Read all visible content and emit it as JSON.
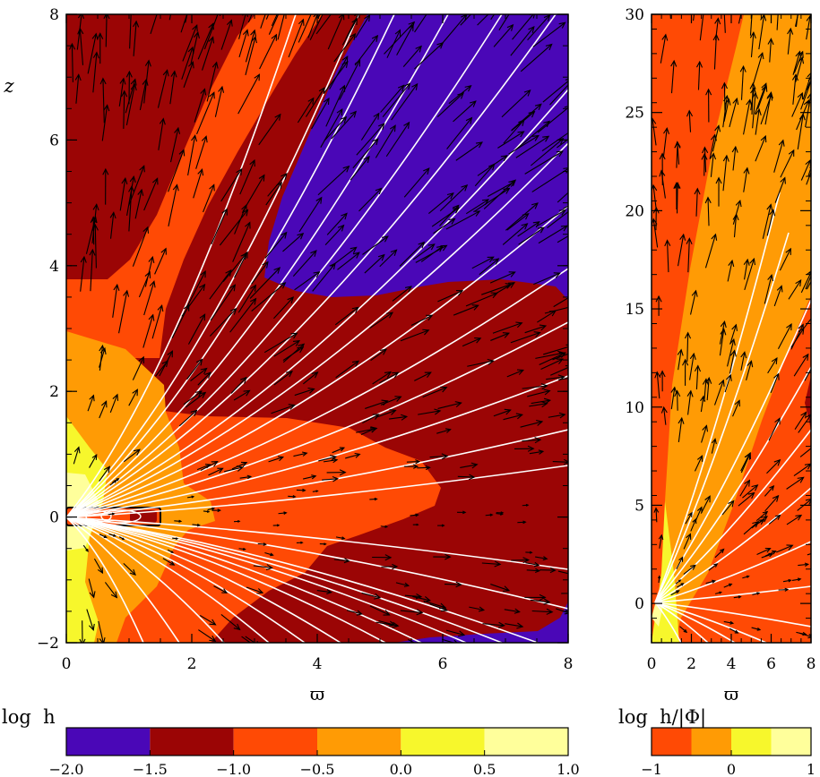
{
  "chart_data": [
    {
      "type": "heatmap",
      "xlabel": "ϖ",
      "ylabel": "z",
      "xlim": [
        0,
        8
      ],
      "ylim": [
        -2,
        8
      ],
      "xticks": [
        0,
        2,
        4,
        6,
        8
      ],
      "yticks": [
        -2,
        0,
        2,
        4,
        6,
        8
      ],
      "xtick_labels": [
        "0",
        "2",
        "4",
        "6",
        "8"
      ],
      "ytick_labels": [
        "−2",
        "0",
        "2",
        "4",
        "6",
        "8"
      ],
      "colorbar": {
        "label": "log  h",
        "edges": [
          -2.0,
          -1.5,
          -1.0,
          -0.5,
          0.0,
          0.5,
          1.0
        ],
        "tick_labels": [
          "−2.0",
          "−1.5",
          "−1.0",
          "−0.5",
          "0.0",
          "0.5",
          "1.0"
        ],
        "colors": [
          "#4a07b7",
          "#9b0505",
          "#ff4a05",
          "#ff9b05",
          "#f7f72c",
          "#ffff9b"
        ]
      },
      "overlays": [
        "white streamlines",
        "black velocity vectors"
      ]
    },
    {
      "type": "heatmap",
      "xlabel": "ϖ",
      "xlim": [
        0,
        8
      ],
      "ylim": [
        -2,
        30
      ],
      "xticks": [
        0,
        2,
        4,
        6,
        8
      ],
      "yticks": [
        0,
        5,
        10,
        15,
        20,
        25,
        30
      ],
      "xtick_labels": [
        "0",
        "2",
        "4",
        "6",
        "8"
      ],
      "ytick_labels": [
        "0",
        "5",
        "10",
        "15",
        "20",
        "25",
        "30"
      ],
      "colorbar": {
        "label": "log  h/|Φ|",
        "edges": [
          -1,
          -0.5,
          0,
          0.5,
          1
        ],
        "tick_labels": [
          "−1",
          "0",
          "1"
        ],
        "tick_values": [
          -1,
          0,
          1
        ],
        "colors": [
          "#ff4a05",
          "#ff9b05",
          "#f7f72c",
          "#ffff9b"
        ]
      },
      "overlays": [
        "white streamlines",
        "black velocity vectors"
      ]
    }
  ]
}
